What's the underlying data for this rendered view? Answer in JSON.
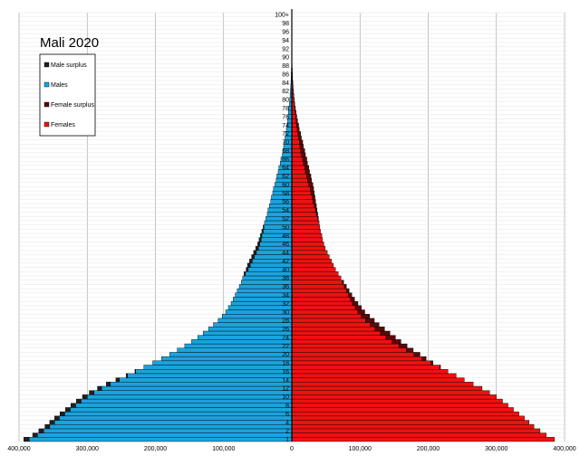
{
  "chart_data": {
    "type": "bar",
    "orientation": "horizontal-pyramid",
    "title": "Mali 2020",
    "x_ticks": [
      "400,000",
      "300,000",
      "200,000",
      "100,000",
      "0",
      "100,000",
      "200,000",
      "300,000",
      "400,000"
    ],
    "x_tick_values": [
      -400000,
      -300000,
      -200000,
      -100000,
      0,
      100000,
      200000,
      300000,
      400000
    ],
    "xlim": [
      -400000,
      400000
    ],
    "grid": true,
    "legend_position": "top-left",
    "legend": [
      {
        "name": "Male surplus",
        "color": "#231f20"
      },
      {
        "name": "Males",
        "color": "#1aa3dd"
      },
      {
        "name": "Female surplus",
        "color": "#5a0a0a"
      },
      {
        "name": "Females",
        "color": "#ee1111"
      }
    ],
    "age_labels": [
      "1",
      "2",
      "4",
      "6",
      "8",
      "10",
      "12",
      "14",
      "16",
      "18",
      "20",
      "22",
      "24",
      "26",
      "28",
      "30",
      "32",
      "34",
      "36",
      "38",
      "40",
      "42",
      "44",
      "46",
      "48",
      "50",
      "52",
      "54",
      "56",
      "58",
      "60",
      "62",
      "64",
      "66",
      "68",
      "70",
      "72",
      "74",
      "76",
      "78",
      "80",
      "82",
      "84",
      "86",
      "88",
      "90",
      "92",
      "94",
      "96",
      "98",
      "100+"
    ],
    "ages": [
      0,
      1,
      2,
      3,
      4,
      5,
      6,
      7,
      8,
      9,
      10,
      11,
      12,
      13,
      14,
      15,
      16,
      17,
      18,
      19,
      20,
      21,
      22,
      23,
      24,
      25,
      26,
      27,
      28,
      29,
      30,
      31,
      32,
      33,
      34,
      35,
      36,
      37,
      38,
      39,
      40,
      41,
      42,
      43,
      44,
      45,
      46,
      47,
      48,
      49,
      50,
      51,
      52,
      53,
      54,
      55,
      56,
      57,
      58,
      59,
      60,
      61,
      62,
      63,
      64,
      65,
      66,
      67,
      68,
      69,
      70,
      71,
      72,
      73,
      74,
      75,
      76,
      77,
      78,
      79,
      80,
      81,
      82,
      83,
      84,
      85,
      86,
      87,
      88,
      89,
      90,
      91,
      92,
      93,
      94,
      95,
      96,
      97,
      98,
      99,
      100
    ],
    "males": [
      393000,
      380000,
      371000,
      362000,
      355000,
      348000,
      340000,
      332000,
      324000,
      316000,
      307000,
      297000,
      285000,
      272000,
      258000,
      243000,
      230000,
      217000,
      204000,
      191000,
      179000,
      168000,
      157000,
      147000,
      138000,
      130000,
      122000,
      115000,
      108000,
      102000,
      97000,
      93000,
      89000,
      86000,
      83000,
      80000,
      77000,
      74000,
      72000,
      70000,
      67000,
      65000,
      62000,
      59000,
      56000,
      53000,
      50000,
      48000,
      46000,
      44000,
      42000,
      40000,
      38000,
      36000,
      35000,
      33000,
      31000,
      30000,
      28000,
      27000,
      25000,
      23000,
      22000,
      20000,
      19000,
      17000,
      16000,
      14000,
      13000,
      12000,
      11000,
      10000,
      9000,
      8000,
      7000,
      6500,
      5800,
      5000,
      4300,
      3700,
      3100,
      2600,
      2100,
      1700,
      1300,
      1000,
      800,
      600,
      400,
      300,
      200,
      150,
      100,
      80,
      60,
      40,
      30,
      20,
      10,
      5,
      3
    ],
    "females": [
      385000,
      373000,
      364000,
      355000,
      348000,
      341000,
      333000,
      325000,
      317000,
      309000,
      300000,
      290000,
      279000,
      266000,
      253000,
      241000,
      229000,
      218000,
      207000,
      197000,
      188000,
      178000,
      169000,
      160000,
      152000,
      144000,
      136000,
      128000,
      121000,
      114000,
      107000,
      102000,
      97000,
      92000,
      88000,
      84000,
      80000,
      76000,
      72000,
      68000,
      64000,
      61000,
      58000,
      55000,
      52000,
      49000,
      47000,
      45000,
      44000,
      42000,
      41000,
      40000,
      39000,
      38000,
      37000,
      36000,
      35000,
      34000,
      33000,
      32000,
      31000,
      29000,
      28000,
      26000,
      25000,
      23000,
      22000,
      20000,
      19000,
      17000,
      16000,
      14000,
      13000,
      11000,
      10000,
      8500,
      7300,
      6200,
      5200,
      4300,
      3500,
      2900,
      2300,
      1900,
      1500,
      1100,
      900,
      700,
      500,
      350,
      250,
      180,
      120,
      90,
      70,
      50,
      35,
      25,
      15,
      8,
      5
    ]
  }
}
